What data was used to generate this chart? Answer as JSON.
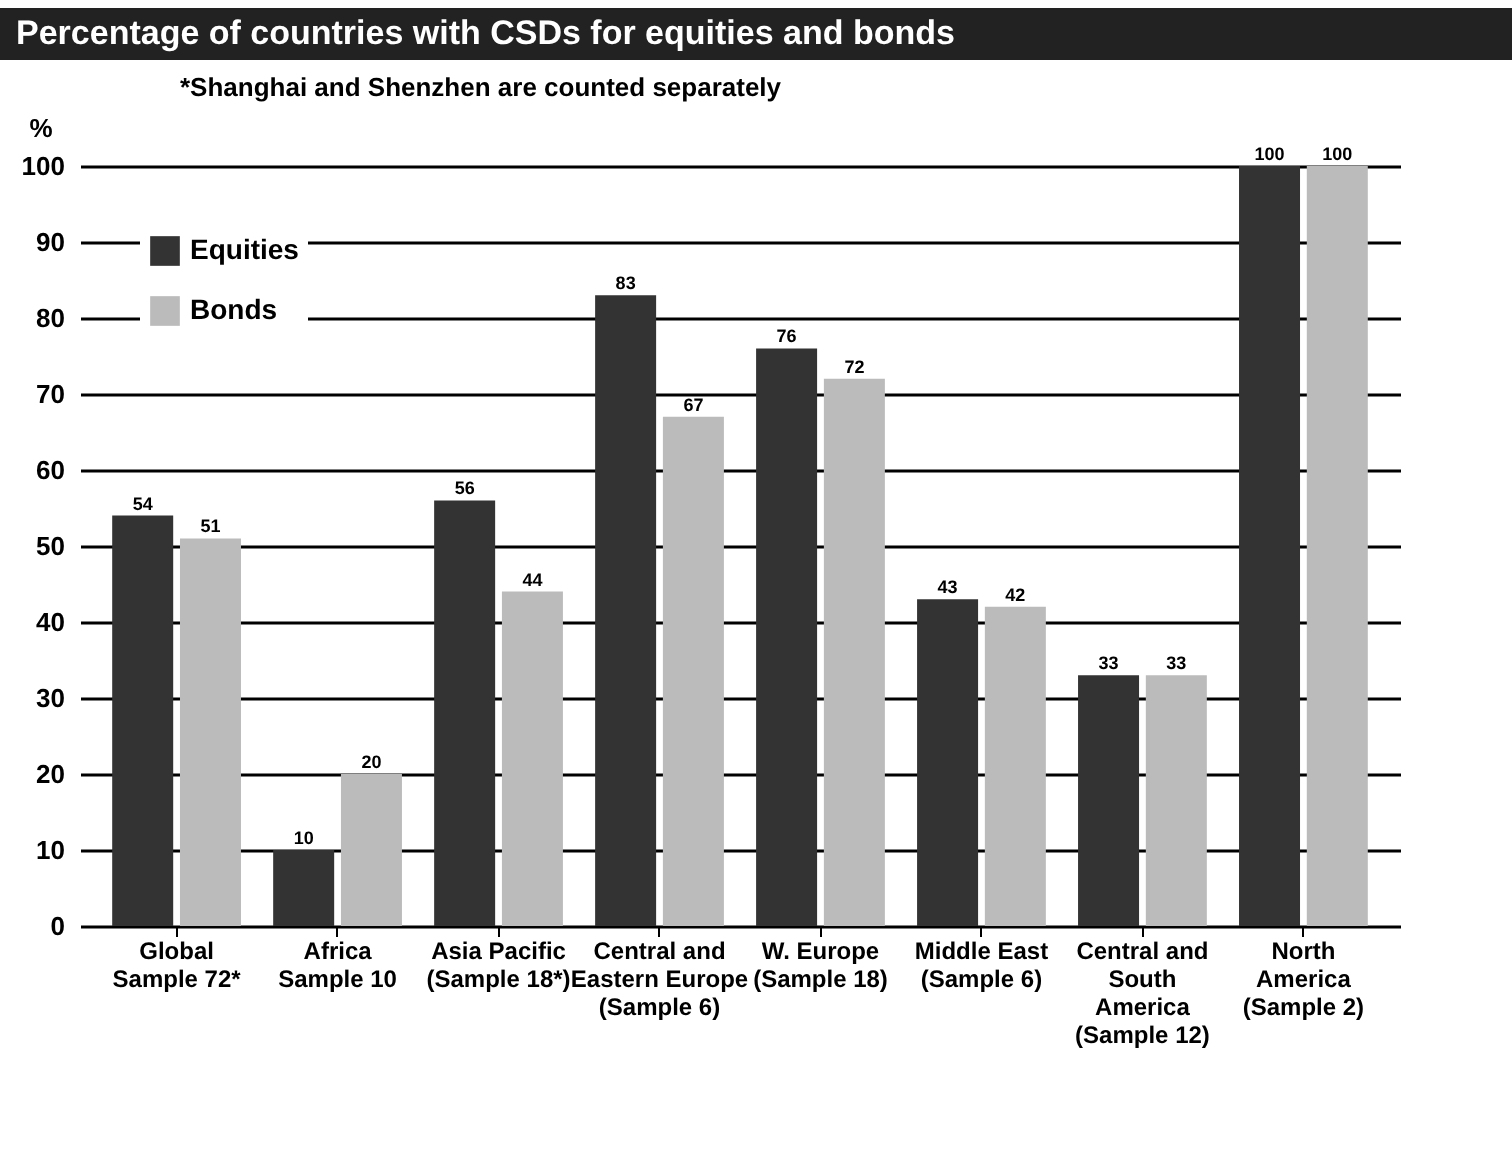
{
  "chart_data": {
    "type": "bar",
    "title": "Percentage of countries with CSDs for equities and bonds",
    "ylabel": "%",
    "annotations": [
      "*Shanghai and Shenzhen are counted separately"
    ],
    "categories": [
      "Global\nSample 72*",
      "Africa\nSample 10",
      "Asia Pacific\n(Sample 18*)",
      "Central and\nEastern Europe\n(Sample 6)",
      "W. Europe\n(Sample 18)",
      "Middle East\n(Sample 6)",
      "Central and\nSouth\nAmerica\n(Sample 12)",
      "North\nAmerica\n(Sample 2)"
    ],
    "series": [
      {
        "name": "Equities",
        "color": "#333333",
        "values": [
          54,
          10,
          56,
          83,
          76,
          43,
          33,
          100
        ]
      },
      {
        "name": "Bonds",
        "color": "#bbbbbb",
        "values": [
          51,
          20,
          44,
          67,
          72,
          42,
          33,
          100
        ]
      }
    ],
    "ylim": [
      0,
      100
    ],
    "yticks": [
      0,
      10,
      20,
      30,
      40,
      50,
      60,
      70,
      80,
      90,
      100
    ],
    "grid": "y",
    "legend": "top left",
    "data_labels": true
  }
}
